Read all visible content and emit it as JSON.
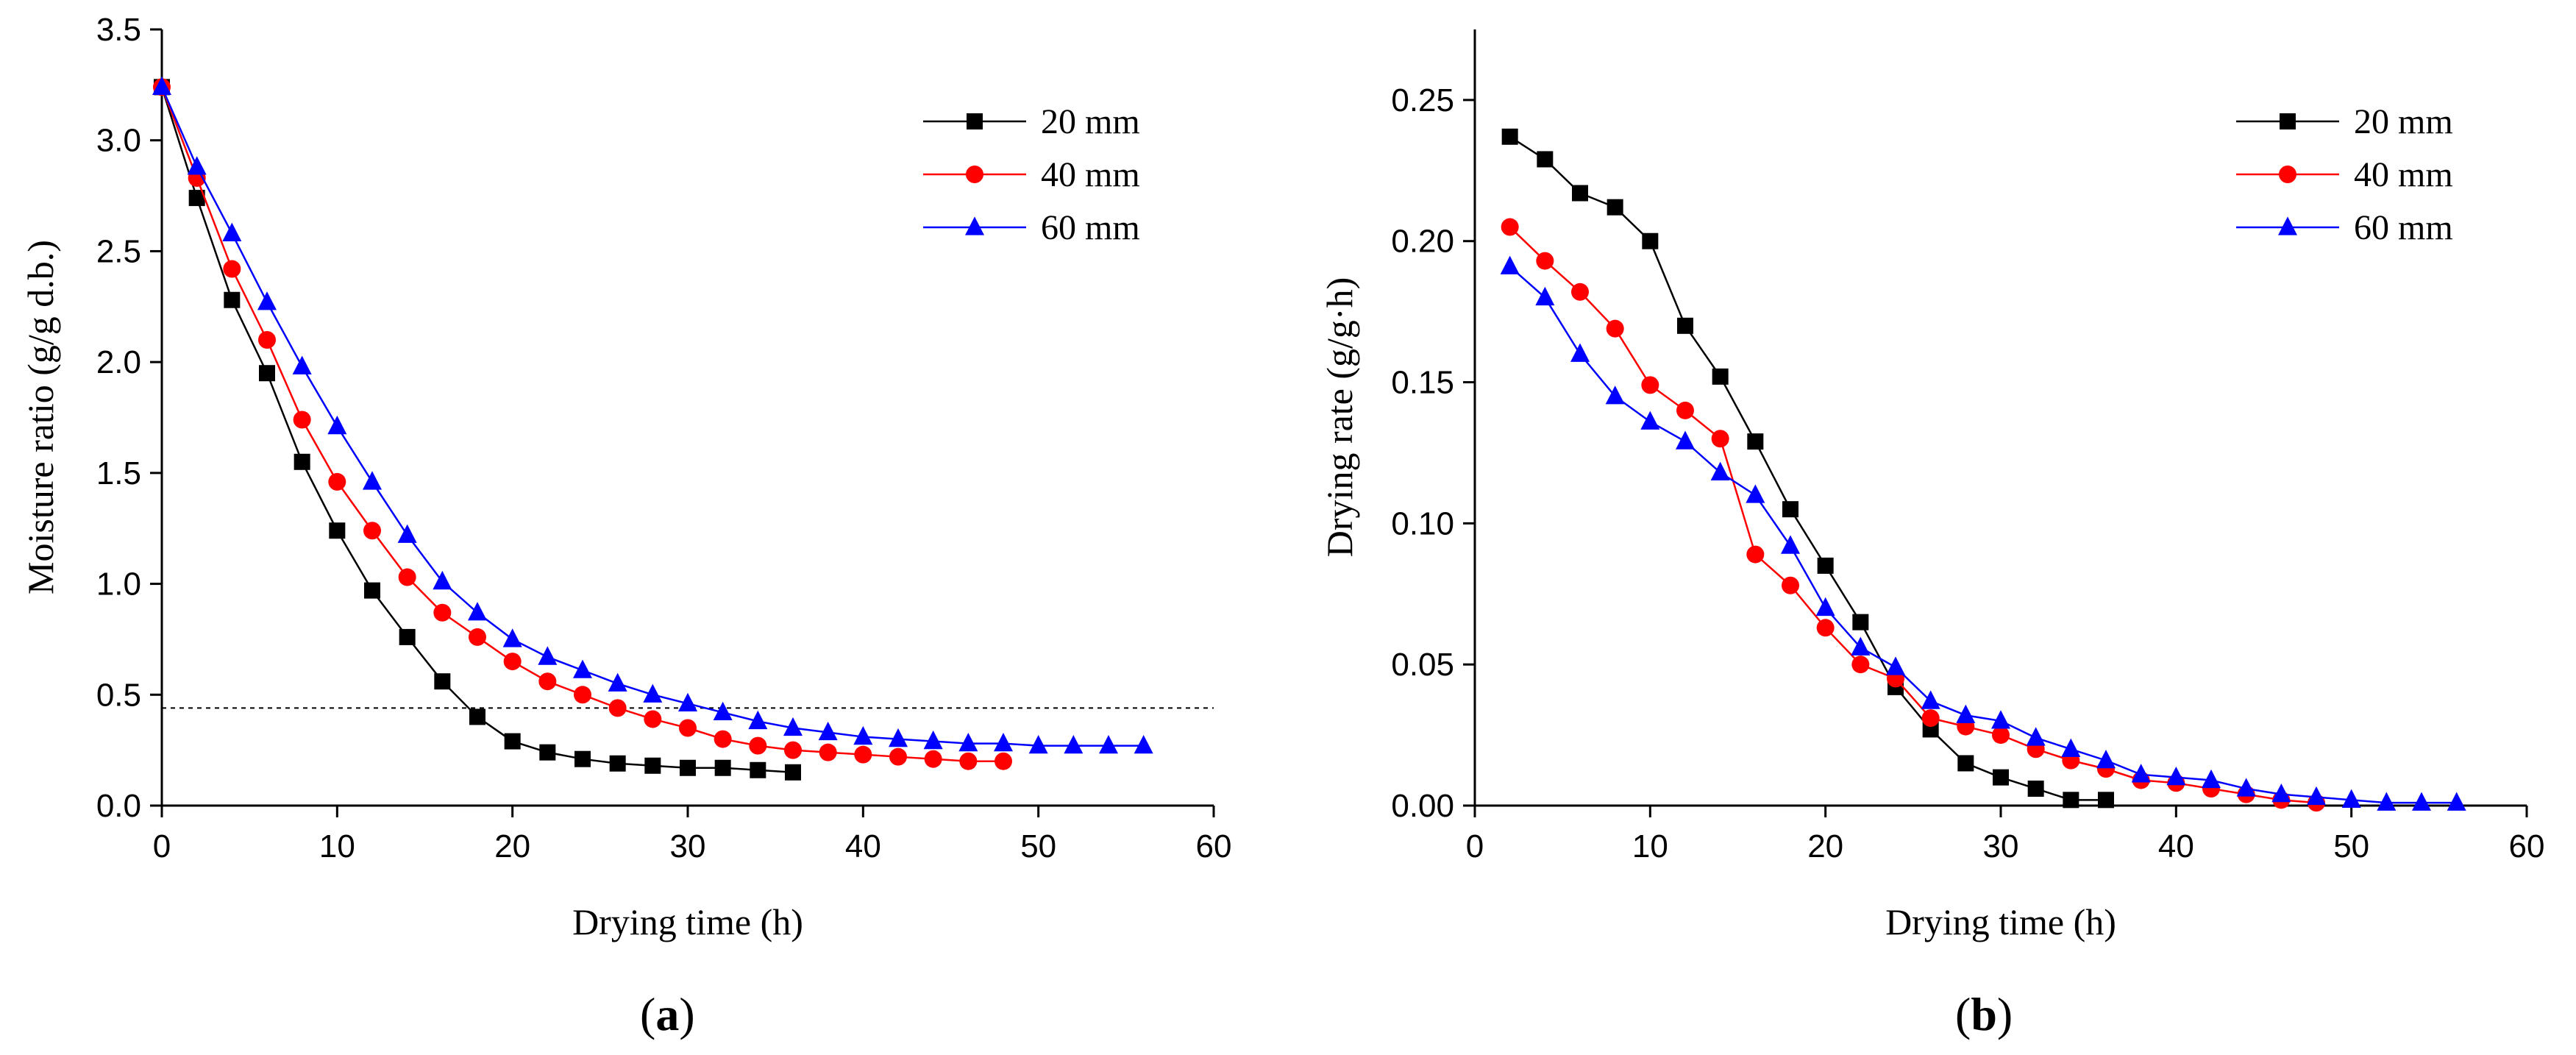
{
  "chart_data": [
    {
      "type": "line",
      "panel": "a",
      "caption_letter": "a",
      "xlabel": "Drying time (h)",
      "ylabel": "Moisture ratio (g/g d.b.)",
      "xlim": [
        0,
        60
      ],
      "ylim": [
        0,
        3.5
      ],
      "xticks": [
        "0",
        "10",
        "20",
        "30",
        "40",
        "50",
        "60"
      ],
      "yticks": [
        "0.0",
        "0.5",
        "1.0",
        "1.5",
        "2.0",
        "2.5",
        "3.0",
        "3.5"
      ],
      "reference_line_y": 0.44,
      "legend_position": "top-right",
      "series": [
        {
          "name": "20 mm",
          "color": "#000000",
          "marker": "square",
          "x": [
            0,
            2,
            4,
            6,
            8,
            10,
            12,
            14,
            16,
            18,
            20,
            22,
            24,
            26,
            28,
            30,
            32,
            34,
            36
          ],
          "y": [
            3.24,
            2.74,
            2.28,
            1.95,
            1.55,
            1.24,
            0.97,
            0.76,
            0.56,
            0.4,
            0.29,
            0.24,
            0.21,
            0.19,
            0.18,
            0.17,
            0.17,
            0.16,
            0.15
          ]
        },
        {
          "name": "40 mm",
          "color": "#ff0000",
          "marker": "circle",
          "x": [
            0,
            2,
            4,
            6,
            8,
            10,
            12,
            14,
            16,
            18,
            20,
            22,
            24,
            26,
            28,
            30,
            32,
            34,
            36,
            38,
            40,
            42,
            44,
            46,
            48
          ],
          "y": [
            3.24,
            2.83,
            2.42,
            2.1,
            1.74,
            1.46,
            1.24,
            1.03,
            0.87,
            0.76,
            0.65,
            0.56,
            0.5,
            0.44,
            0.39,
            0.35,
            0.3,
            0.27,
            0.25,
            0.24,
            0.23,
            0.22,
            0.21,
            0.2,
            0.2
          ]
        },
        {
          "name": "60 mm",
          "color": "#0000ff",
          "marker": "triangle",
          "x": [
            0,
            2,
            4,
            6,
            8,
            10,
            12,
            14,
            16,
            18,
            20,
            22,
            24,
            26,
            28,
            30,
            32,
            34,
            36,
            38,
            40,
            42,
            44,
            46,
            48,
            50,
            52,
            54,
            56
          ],
          "y": [
            3.24,
            2.88,
            2.58,
            2.27,
            1.98,
            1.71,
            1.46,
            1.22,
            1.01,
            0.87,
            0.75,
            0.67,
            0.61,
            0.55,
            0.5,
            0.46,
            0.42,
            0.38,
            0.35,
            0.33,
            0.31,
            0.3,
            0.29,
            0.28,
            0.28,
            0.27,
            0.27,
            0.27,
            0.27
          ]
        }
      ]
    },
    {
      "type": "line",
      "panel": "b",
      "caption_letter": "b",
      "xlabel": "Drying time (h)",
      "ylabel": "Drying rate (g/g·h)",
      "xlim": [
        0,
        60
      ],
      "ylim": [
        0,
        0.275
      ],
      "xticks": [
        "0",
        "10",
        "20",
        "30",
        "40",
        "50",
        "60"
      ],
      "yticks": [
        "0.00",
        "0.05",
        "0.10",
        "0.15",
        "0.20",
        "0.25"
      ],
      "legend_position": "top-right",
      "series": [
        {
          "name": "20 mm",
          "color": "#000000",
          "marker": "square",
          "x": [
            2,
            4,
            6,
            8,
            10,
            12,
            14,
            16,
            18,
            20,
            22,
            24,
            26,
            28,
            30,
            32,
            34,
            36
          ],
          "y": [
            0.237,
            0.229,
            0.217,
            0.212,
            0.2,
            0.17,
            0.152,
            0.129,
            0.105,
            0.085,
            0.065,
            0.042,
            0.027,
            0.015,
            0.01,
            0.006,
            0.002,
            0.002
          ]
        },
        {
          "name": "40 mm",
          "color": "#ff0000",
          "marker": "circle",
          "x": [
            2,
            4,
            6,
            8,
            10,
            12,
            14,
            16,
            18,
            20,
            22,
            24,
            26,
            28,
            30,
            32,
            34,
            36,
            38,
            40,
            42,
            44,
            46,
            48
          ],
          "y": [
            0.205,
            0.193,
            0.182,
            0.169,
            0.149,
            0.14,
            0.13,
            0.089,
            0.078,
            0.063,
            0.05,
            0.045,
            0.031,
            0.028,
            0.025,
            0.02,
            0.016,
            0.013,
            0.009,
            0.008,
            0.006,
            0.004,
            0.002,
            0.001
          ]
        },
        {
          "name": "60 mm",
          "color": "#0000ff",
          "marker": "triangle",
          "x": [
            2,
            4,
            6,
            8,
            10,
            12,
            14,
            16,
            18,
            20,
            22,
            24,
            26,
            28,
            30,
            32,
            34,
            36,
            38,
            40,
            42,
            44,
            46,
            48,
            50,
            52,
            54,
            56
          ],
          "y": [
            0.191,
            0.18,
            0.16,
            0.145,
            0.136,
            0.129,
            0.118,
            0.11,
            0.092,
            0.07,
            0.056,
            0.049,
            0.037,
            0.032,
            0.03,
            0.024,
            0.02,
            0.016,
            0.011,
            0.01,
            0.009,
            0.006,
            0.004,
            0.003,
            0.002,
            0.001,
            0.001,
            0.001
          ]
        }
      ]
    }
  ]
}
